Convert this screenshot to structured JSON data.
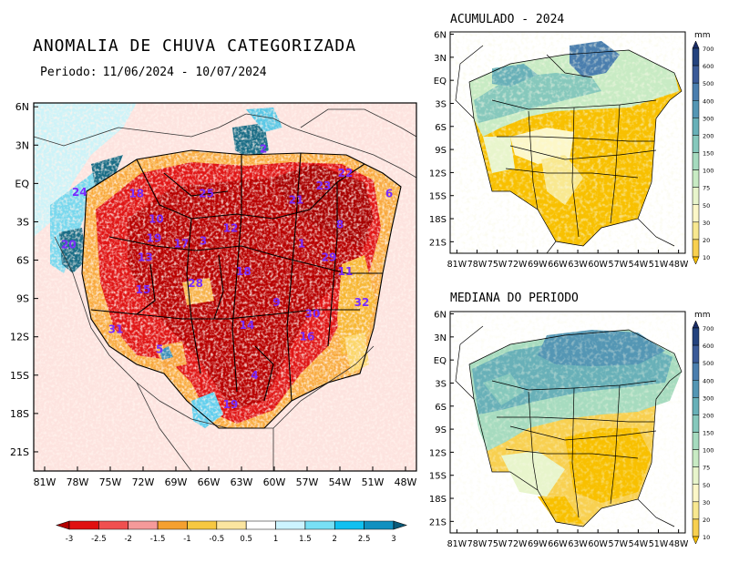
{
  "main_map": {
    "title": "ANOMALIA DE CHUVA CATEGORIZADA",
    "period_label": "Periodo:",
    "period_value": "11/06/2024 - 10/07/2024",
    "lat_ticks": [
      "6N",
      "3N",
      "EQ",
      "3S",
      "6S",
      "9S",
      "12S",
      "15S",
      "18S",
      "21S"
    ],
    "lon_ticks": [
      "81W",
      "78W",
      "75W",
      "72W",
      "69W",
      "66W",
      "63W",
      "60W",
      "57W",
      "54W",
      "51W",
      "48W"
    ],
    "basin_ids": [
      {
        "id": "2",
        "lon": -61.0,
        "lat": 2.7
      },
      {
        "id": "22",
        "lon": -53.5,
        "lat": 0.8
      },
      {
        "id": "23",
        "lon": -55.5,
        "lat": -0.2
      },
      {
        "id": "24",
        "lon": -77.8,
        "lat": -0.7
      },
      {
        "id": "18",
        "lon": -72.6,
        "lat": -0.8
      },
      {
        "id": "25",
        "lon": -66.2,
        "lat": -0.8
      },
      {
        "id": "21",
        "lon": -58.0,
        "lat": -1.3
      },
      {
        "id": "6",
        "lon": -49.5,
        "lat": -0.8
      },
      {
        "id": "10",
        "lon": -70.8,
        "lat": -2.8
      },
      {
        "id": "12",
        "lon": -64.0,
        "lat": -3.5
      },
      {
        "id": "8",
        "lon": -54.0,
        "lat": -3.2
      },
      {
        "id": "19",
        "lon": -71.0,
        "lat": -4.3
      },
      {
        "id": "17",
        "lon": -68.5,
        "lat": -4.7
      },
      {
        "id": "3",
        "lon": -66.5,
        "lat": -4.5
      },
      {
        "id": "1",
        "lon": -57.5,
        "lat": -4.7
      },
      {
        "id": "20",
        "lon": -78.8,
        "lat": -4.8
      },
      {
        "id": "13",
        "lon": -71.8,
        "lat": -5.8
      },
      {
        "id": "29",
        "lon": -55.0,
        "lat": -5.8
      },
      {
        "id": "11",
        "lon": -53.5,
        "lat": -6.9
      },
      {
        "id": "18",
        "lon": -62.8,
        "lat": -6.9
      },
      {
        "id": "28",
        "lon": -67.2,
        "lat": -7.8
      },
      {
        "id": "15",
        "lon": -72.0,
        "lat": -8.3
      },
      {
        "id": "9",
        "lon": -59.8,
        "lat": -9.3
      },
      {
        "id": "32",
        "lon": -52.0,
        "lat": -9.3
      },
      {
        "id": "30",
        "lon": -56.5,
        "lat": -10.2
      },
      {
        "id": "14",
        "lon": -62.5,
        "lat": -11.1
      },
      {
        "id": "31",
        "lon": -74.5,
        "lat": -11.4
      },
      {
        "id": "16",
        "lon": -57.0,
        "lat": -12.0
      },
      {
        "id": "5",
        "lon": -70.5,
        "lat": -13.0
      },
      {
        "id": "4",
        "lon": -61.8,
        "lat": -15.0
      },
      {
        "id": "19",
        "lon": -64.0,
        "lat": -17.3
      }
    ],
    "colorbar": {
      "labels": [
        "-3",
        "-2.5",
        "-2",
        "-1.5",
        "-1",
        "-0.5",
        "0.5",
        "1",
        "1.5",
        "2",
        "2.5",
        "3"
      ],
      "colors": [
        "#b30000",
        "#e01010",
        "#f05050",
        "#f59a9a",
        "#f5a030",
        "#f7c840",
        "#fbe5a0",
        "#ffffff",
        "#ccf4ff",
        "#78e0f5",
        "#10c0f0",
        "#1090c0",
        "#0a5a7a"
      ]
    }
  },
  "accum_map": {
    "title": "ACUMULADO - 2024"
  },
  "median_map": {
    "title": "MEDIANA DO PERIODO"
  },
  "small_lat_ticks": [
    "6N",
    "3N",
    "EQ",
    "3S",
    "6S",
    "9S",
    "12S",
    "15S",
    "18S",
    "21S"
  ],
  "small_lon_ticks": [
    "81W",
    "78W",
    "75W",
    "72W",
    "69W",
    "66W",
    "63W",
    "60W",
    "57W",
    "54W",
    "51W",
    "48W"
  ],
  "small_colorbar": {
    "unit": "mm",
    "labels": [
      "10",
      "20",
      "30",
      "50",
      "75",
      "100",
      "150",
      "200",
      "300",
      "400",
      "500",
      "600",
      "700"
    ],
    "colors": [
      "#f8c000",
      "#f8d050",
      "#f8e890",
      "#fcf7c8",
      "#e8f5cc",
      "#c8ebc4",
      "#a6dbbf",
      "#86c8bc",
      "#68b0b8",
      "#5496b4",
      "#4a7eae",
      "#3a5a98",
      "#23427e",
      "#1a2d66"
    ]
  },
  "colors": {
    "deep_red": "#c00000",
    "red": "#e02020",
    "yellow": "#f8c000",
    "teal": "#1f7a93",
    "blue_gray": "#7fb0bd",
    "label_purple": "#7a2cff"
  }
}
